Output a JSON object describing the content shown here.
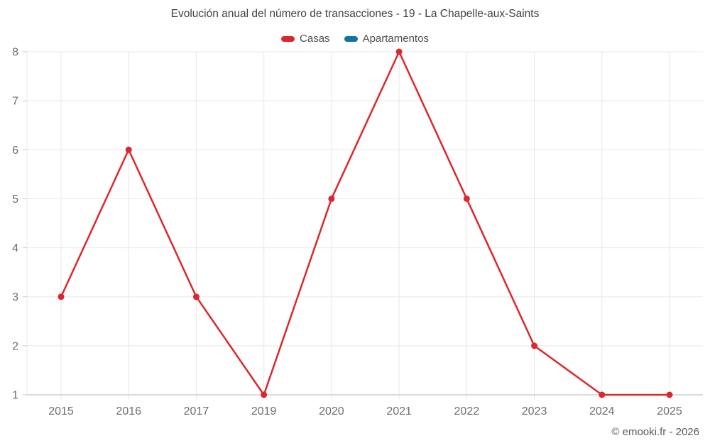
{
  "title": "Evolución anual del número de transacciones - 19 - La Chapelle-aux-Saints",
  "footer": "© emooki.fr - 2026",
  "chart_data": {
    "type": "line",
    "title": "Evolución anual del número de transacciones - 19 - La Chapelle-aux-Saints",
    "categories": [
      "2015",
      "2016",
      "2017",
      "2019",
      "2020",
      "2021",
      "2022",
      "2023",
      "2024",
      "2025"
    ],
    "series": [
      {
        "name": "Casas",
        "color": "#d9292e",
        "values": [
          3,
          6,
          3,
          1,
          5,
          8,
          5,
          2,
          1,
          1
        ]
      },
      {
        "name": "Apartamentos",
        "color": "#1273a5",
        "values": []
      }
    ],
    "xlabel": "",
    "ylabel": "",
    "ylim": [
      1,
      8
    ],
    "yticks": [
      1,
      2,
      3,
      4,
      5,
      6,
      7,
      8
    ],
    "grid": true,
    "legend_position": "top"
  }
}
